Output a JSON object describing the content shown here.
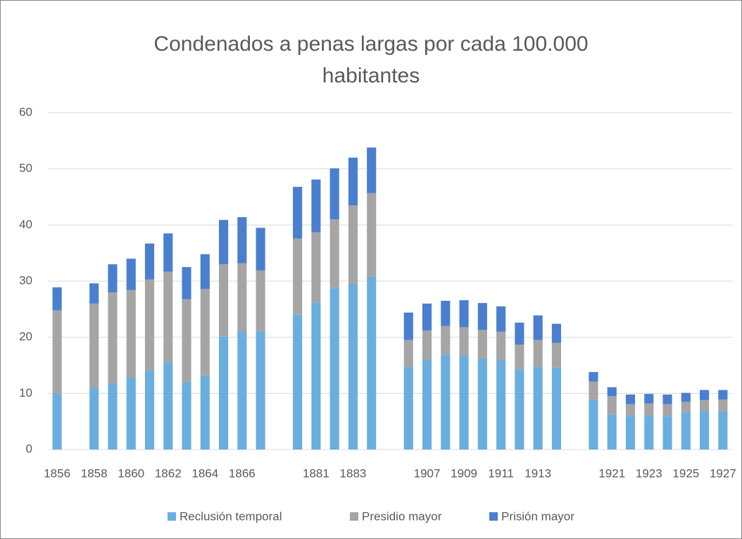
{
  "chart_data": {
    "type": "stacked-bar",
    "title": "Condenados a penas largas por cada 100.000 habitantes",
    "categories": [
      "1856",
      null,
      "1858",
      null,
      "1860",
      null,
      "1862",
      null,
      "1864",
      null,
      "1866",
      null,
      null,
      null,
      "1881",
      null,
      "1883",
      null,
      null,
      null,
      "1907",
      null,
      "1909",
      null,
      "1911",
      null,
      "1913",
      null,
      null,
      null,
      "1921",
      null,
      "1923",
      null,
      "1925",
      null,
      "1927"
    ],
    "series": [
      {
        "name": "Reclusión temporal",
        "color": "#6aaee0",
        "values": [
          10,
          null,
          11,
          11.8,
          12.8,
          14,
          15.5,
          12,
          13.2,
          20.1,
          20.9,
          21.1,
          null,
          24,
          26.2,
          28.7,
          29.5,
          30.8,
          null,
          14.7,
          16,
          16.9,
          16.7,
          16.2,
          16,
          14.3,
          14.8,
          14.6,
          null,
          8.8,
          6.2,
          6,
          6,
          6,
          6.6,
          6.9,
          6.8
        ]
      },
      {
        "name": "Presidio mayor",
        "color": "#a5a5a5",
        "values": [
          14.8,
          null,
          15,
          16.2,
          15.6,
          16.3,
          16.2,
          14.8,
          15.4,
          12.9,
          12.3,
          10.8,
          null,
          13.6,
          12.5,
          12.3,
          14,
          14.9,
          null,
          4.8,
          5.2,
          5.1,
          5.1,
          5.1,
          5,
          4.4,
          4.7,
          4.4,
          null,
          3.3,
          3.3,
          2.1,
          2.2,
          2.1,
          1.9,
          1.9,
          2.1
        ]
      },
      {
        "name": "Prisión mayor",
        "color": "#4a7fcf",
        "values": [
          4.1,
          null,
          3.6,
          5,
          5.6,
          6.4,
          6.8,
          5.7,
          6.2,
          7.9,
          8.2,
          7.6,
          null,
          9.2,
          9.4,
          9.1,
          8.5,
          8.1,
          null,
          4.9,
          4.8,
          4.5,
          4.8,
          4.8,
          4.5,
          3.9,
          4.4,
          3.4,
          null,
          1.7,
          1.6,
          1.7,
          1.7,
          1.7,
          1.6,
          1.8,
          1.7
        ]
      }
    ],
    "ylim": [
      0,
      60
    ],
    "yticks": [
      0,
      10,
      20,
      30,
      40,
      50,
      60
    ],
    "grid": true,
    "legend": "bottom"
  }
}
